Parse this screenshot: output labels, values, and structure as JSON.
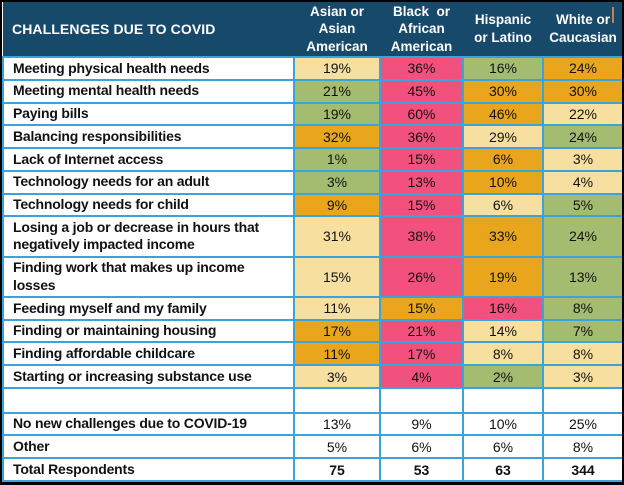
{
  "chart_data": {
    "type": "table",
    "title": "CHALLENGES DUE TO COVID",
    "columns": [
      "Asian or\nAsian\nAmerican",
      "Black  or\nAfrican\nAmerican",
      "Hispanic\nor Latino",
      "White or\nCaucasian"
    ],
    "rows": [
      {
        "label": "Meeting physical health needs",
        "values": [
          "19%",
          "36%",
          "16%",
          "24%"
        ],
        "colors": [
          "cream",
          "pink",
          "green",
          "orange"
        ]
      },
      {
        "label": "Meeting mental health needs",
        "values": [
          "21%",
          "45%",
          "30%",
          "30%"
        ],
        "colors": [
          "green",
          "pink",
          "orange",
          "orange"
        ]
      },
      {
        "label": "Paying bills",
        "values": [
          "19%",
          "60%",
          "46%",
          "22%"
        ],
        "colors": [
          "green",
          "pink",
          "orange",
          "cream"
        ]
      },
      {
        "label": "Balancing responsibilities",
        "values": [
          "32%",
          "36%",
          "29%",
          "24%"
        ],
        "colors": [
          "orange",
          "pink",
          "cream",
          "green"
        ]
      },
      {
        "label": "Lack of Internet access",
        "values": [
          "1%",
          "15%",
          "6%",
          "3%"
        ],
        "colors": [
          "green",
          "pink",
          "orange",
          "cream"
        ]
      },
      {
        "label": "Technology needs for an adult",
        "values": [
          "3%",
          "13%",
          "10%",
          "4%"
        ],
        "colors": [
          "green",
          "pink",
          "orange",
          "cream"
        ]
      },
      {
        "label": "Technology needs for child",
        "values": [
          "9%",
          "15%",
          "6%",
          "5%"
        ],
        "colors": [
          "orange",
          "pink",
          "cream",
          "green"
        ]
      },
      {
        "label": "Losing a job or decrease in hours that negatively impacted income",
        "values": [
          "31%",
          "38%",
          "33%",
          "24%"
        ],
        "colors": [
          "cream",
          "pink",
          "orange",
          "green"
        ]
      },
      {
        "label": "Finding work that makes up income losses",
        "values": [
          "15%",
          "26%",
          "19%",
          "13%"
        ],
        "colors": [
          "cream",
          "pink",
          "orange",
          "green"
        ]
      },
      {
        "label": "Feeding myself and my family",
        "values": [
          "11%",
          "15%",
          "16%",
          "8%"
        ],
        "colors": [
          "cream",
          "orange",
          "pink",
          "green"
        ]
      },
      {
        "label": "Finding or maintaining housing",
        "values": [
          "17%",
          "21%",
          "14%",
          "7%"
        ],
        "colors": [
          "orange",
          "pink",
          "cream",
          "green"
        ]
      },
      {
        "label": "Finding affordable childcare",
        "values": [
          "11%",
          "17%",
          "8%",
          "8%"
        ],
        "colors": [
          "orange",
          "pink",
          "cream",
          "cream"
        ]
      },
      {
        "label": "Starting or increasing substance use",
        "values": [
          "3%",
          "4%",
          "2%",
          "3%"
        ],
        "colors": [
          "cream",
          "pink",
          "green",
          "cream"
        ]
      }
    ],
    "footer_rows": [
      {
        "label": "No new challenges due to COVID-19",
        "values": [
          "13%",
          "9%",
          "10%",
          "25%"
        ],
        "bold": false
      },
      {
        "label": "Other",
        "values": [
          "5%",
          "6%",
          "6%",
          "8%"
        ],
        "bold": false
      },
      {
        "label": "Total Respondents",
        "values": [
          "75",
          "53",
          "63",
          "344"
        ],
        "bold": true
      }
    ],
    "legend_colors": {
      "cream": "#F7DFA0",
      "pink": "#F3517D",
      "green": "#A4BC70",
      "orange": "#E9A51C",
      "header_navy": "#17496B",
      "grid_blue": "#3BA3DB"
    }
  }
}
